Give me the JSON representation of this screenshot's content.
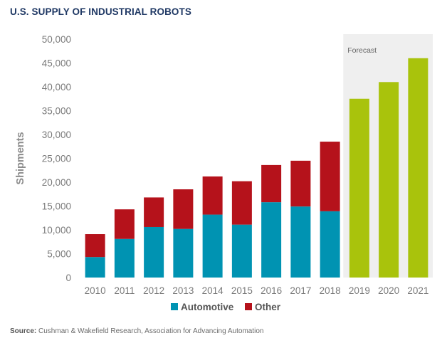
{
  "title": "U.S. SUPPLY OF INDUSTRIAL ROBOTS",
  "source_label": "Source:",
  "source_text": "Cushman & Wakefield Research, Association for Advancing Automation",
  "forecast_label": "Forecast",
  "colors": {
    "automotive": "#0093b2",
    "other": "#b5121b",
    "forecast": "#a9c30c",
    "forecast_band": "#efefef",
    "title": "#1f3864"
  },
  "chart_data": {
    "type": "bar",
    "stacked": true,
    "title": "U.S. SUPPLY OF INDUSTRIAL ROBOTS",
    "ylabel": "Shipments",
    "xlabel": "",
    "ylim": [
      0,
      50000
    ],
    "yticks": [
      "0",
      "5,000",
      "10,000",
      "15,000",
      "20,000",
      "25,000",
      "30,000",
      "35,000",
      "40,000",
      "45,000",
      "50,000"
    ],
    "categories": [
      "2010",
      "2011",
      "2012",
      "2013",
      "2014",
      "2015",
      "2016",
      "2017",
      "2018",
      "2019",
      "2020",
      "2021"
    ],
    "series": [
      {
        "name": "Automotive",
        "values": [
          4300,
          8100,
          10600,
          10200,
          13200,
          11100,
          15800,
          14900,
          13900,
          null,
          null,
          null
        ]
      },
      {
        "name": "Other",
        "values": [
          4800,
          6200,
          6200,
          8300,
          8000,
          9100,
          7800,
          9600,
          14600,
          null,
          null,
          null
        ]
      },
      {
        "name": "Forecast",
        "values": [
          null,
          null,
          null,
          null,
          null,
          null,
          null,
          null,
          null,
          37500,
          41000,
          46000
        ]
      }
    ],
    "legend": [
      "Automotive",
      "Other"
    ],
    "legend_position": "bottom",
    "forecast_region": [
      "2019",
      "2021"
    ],
    "grid": false
  }
}
